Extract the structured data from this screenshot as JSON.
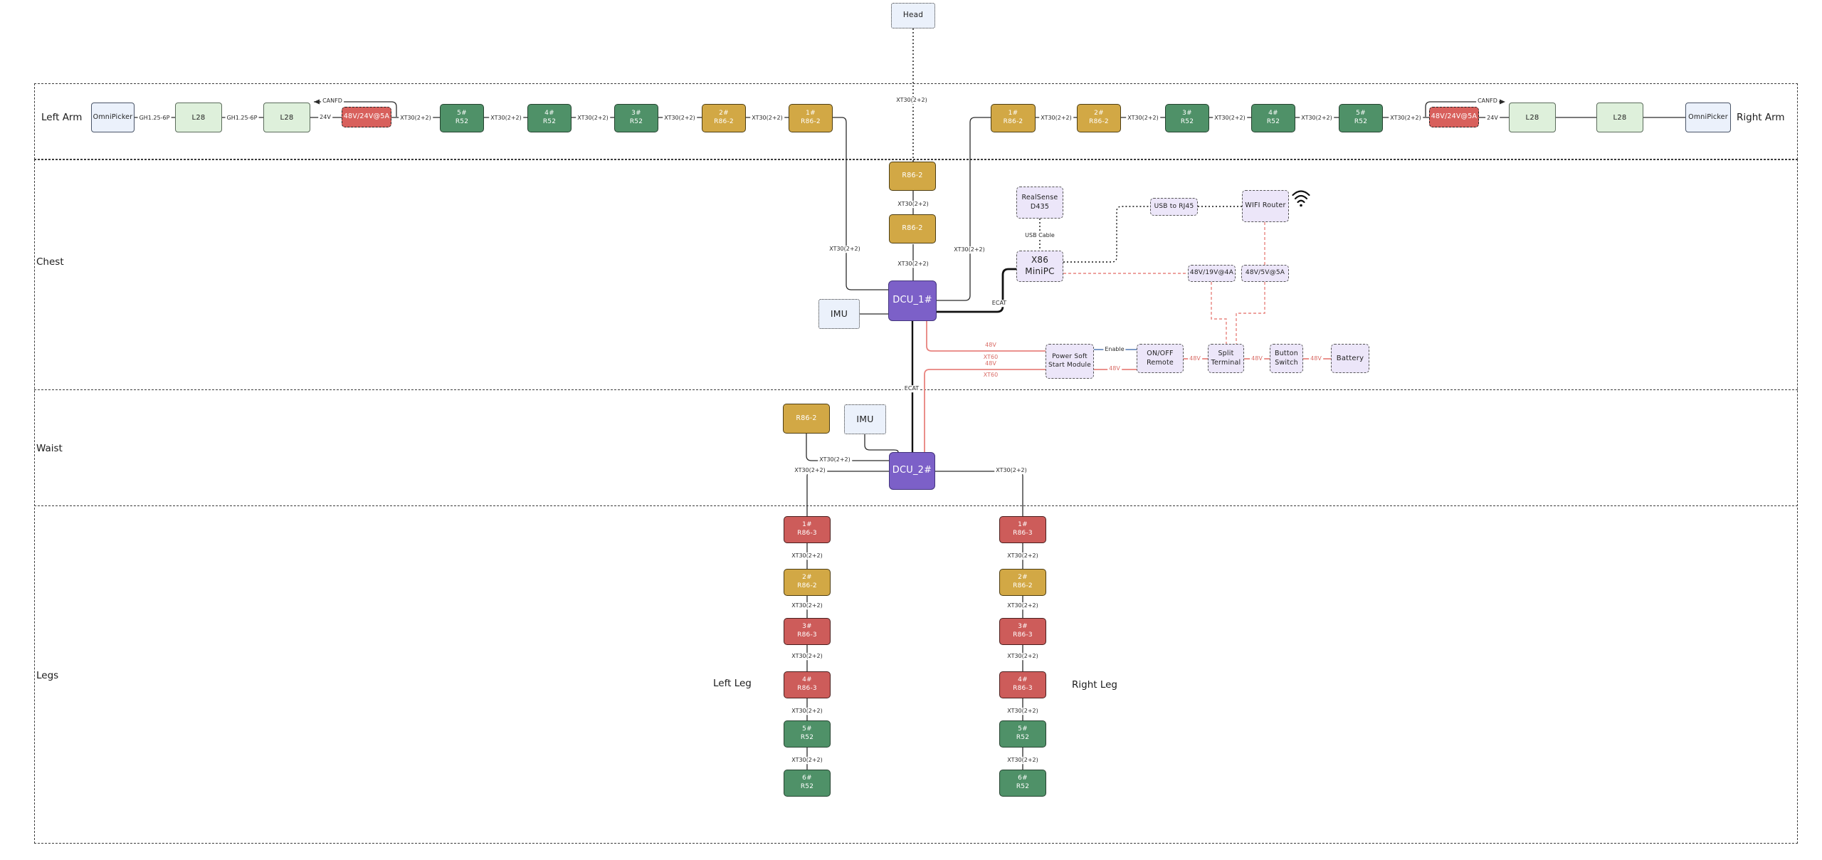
{
  "colors": {
    "motor_green": "#4F9168",
    "motor_gold": "#D2A845",
    "motor_red": "#CD5C5A",
    "dcu_purple": "#7C60C8",
    "converter_red": "#D8605C",
    "lavender_fill": "#ECE6F9",
    "softblue_fill": "#EBF1FB",
    "lightgreen_fill": "#DEF0DB",
    "wire_red": "#E8837E",
    "wire_red_text": "#D96C66",
    "wire_blue": "#6C8EBF"
  },
  "section_labels": [
    {
      "id": "left-arm",
      "text": "Left Arm"
    },
    {
      "id": "right-arm",
      "text": "Right Arm"
    },
    {
      "id": "chest",
      "text": "Chest"
    },
    {
      "id": "waist",
      "text": "Waist"
    },
    {
      "id": "legs",
      "text": "Legs"
    },
    {
      "id": "left-leg",
      "text": "Left Leg"
    },
    {
      "id": "right-leg",
      "text": "Right Leg"
    }
  ],
  "nodes": [
    {
      "id": "omnipicker-left",
      "lines": [
        "OmniPicker"
      ],
      "style": "softblue"
    },
    {
      "id": "l28-left-1",
      "lines": [
        "L28"
      ],
      "style": "lightgreen"
    },
    {
      "id": "l28-left-2",
      "lines": [
        "L28"
      ],
      "style": "lightgreen"
    },
    {
      "id": "converter-left",
      "lines": [
        "48V/24V@5A"
      ],
      "style": "reddash"
    },
    {
      "id": "motor-left-5",
      "lines": [
        "5#",
        "R52"
      ],
      "style": "green"
    },
    {
      "id": "motor-left-4",
      "lines": [
        "4#",
        "R52"
      ],
      "style": "green"
    },
    {
      "id": "motor-left-3",
      "lines": [
        "3#",
        "R52"
      ],
      "style": "green"
    },
    {
      "id": "motor-left-2",
      "lines": [
        "2#",
        "R86-2"
      ],
      "style": "gold"
    },
    {
      "id": "motor-left-1",
      "lines": [
        "1#",
        "R86-2"
      ],
      "style": "gold"
    },
    {
      "id": "motor-right-1",
      "lines": [
        "1#",
        "R86-2"
      ],
      "style": "gold"
    },
    {
      "id": "motor-right-2",
      "lines": [
        "2#",
        "R86-2"
      ],
      "style": "gold"
    },
    {
      "id": "motor-right-3",
      "lines": [
        "3#",
        "R52"
      ],
      "style": "green"
    },
    {
      "id": "motor-right-4",
      "lines": [
        "4#",
        "R52"
      ],
      "style": "green"
    },
    {
      "id": "motor-right-5",
      "lines": [
        "5#",
        "R52"
      ],
      "style": "green"
    },
    {
      "id": "converter-right",
      "lines": [
        "48V/24V@5A"
      ],
      "style": "reddash"
    },
    {
      "id": "l28-right-1",
      "lines": [
        "L28"
      ],
      "style": "lightgreen"
    },
    {
      "id": "l28-right-2",
      "lines": [
        "L28"
      ],
      "style": "lightgreen"
    },
    {
      "id": "omnipicker-right",
      "lines": [
        "OmniPicker"
      ],
      "style": "softblue"
    },
    {
      "id": "head",
      "lines": [
        "Head"
      ],
      "style": "softdot"
    },
    {
      "id": "r86-chest-1",
      "lines": [
        "R86-2"
      ],
      "style": "gold"
    },
    {
      "id": "r86-chest-2",
      "lines": [
        "R86-2"
      ],
      "style": "gold"
    },
    {
      "id": "dcu-1",
      "lines": [
        "DCU_1#"
      ],
      "style": "purple"
    },
    {
      "id": "imu-chest",
      "lines": [
        "IMU"
      ],
      "style": "softdot"
    },
    {
      "id": "realsense-d435",
      "lines": [
        "RealSense",
        "D435"
      ],
      "style": "lavender"
    },
    {
      "id": "x86-minipc",
      "lines": [
        "X86",
        "MiniPC"
      ],
      "style": "lavender"
    },
    {
      "id": "usb-to-rj45",
      "lines": [
        "USB to RJ45"
      ],
      "style": "lavender"
    },
    {
      "id": "wifi-router",
      "lines": [
        "WIFI Router"
      ],
      "style": "lavender"
    },
    {
      "id": "conv-48v-19v",
      "lines": [
        "48V/19V@4A"
      ],
      "style": "lavender"
    },
    {
      "id": "conv-48v-5v",
      "lines": [
        "48V/5V@5A"
      ],
      "style": "lavender"
    },
    {
      "id": "power-soft-start",
      "lines": [
        "Power Soft",
        "Start Module"
      ],
      "style": "lavender"
    },
    {
      "id": "onoff-remote",
      "lines": [
        "ON/OFF",
        "Remote"
      ],
      "style": "lavender"
    },
    {
      "id": "split-terminal",
      "lines": [
        "Split",
        "Terminal"
      ],
      "style": "lavender"
    },
    {
      "id": "button-switch",
      "lines": [
        "Button",
        "Switch"
      ],
      "style": "lavender"
    },
    {
      "id": "battery",
      "lines": [
        "Battery"
      ],
      "style": "lavender"
    },
    {
      "id": "r86-waist",
      "lines": [
        "R86-2"
      ],
      "style": "gold"
    },
    {
      "id": "imu-waist",
      "lines": [
        "IMU"
      ],
      "style": "softdot"
    },
    {
      "id": "dcu-2",
      "lines": [
        "DCU_2#"
      ],
      "style": "purple"
    },
    {
      "id": "left-leg-1",
      "lines": [
        "1#",
        "R86-3"
      ],
      "style": "red"
    },
    {
      "id": "left-leg-2",
      "lines": [
        "2#",
        "R86-2"
      ],
      "style": "gold"
    },
    {
      "id": "left-leg-3",
      "lines": [
        "3#",
        "R86-3"
      ],
      "style": "red"
    },
    {
      "id": "left-leg-4",
      "lines": [
        "4#",
        "R86-3"
      ],
      "style": "red"
    },
    {
      "id": "left-leg-5",
      "lines": [
        "5#",
        "R52"
      ],
      "style": "green"
    },
    {
      "id": "left-leg-6",
      "lines": [
        "6#",
        "R52"
      ],
      "style": "green"
    },
    {
      "id": "right-leg-1",
      "lines": [
        "1#",
        "R86-3"
      ],
      "style": "red"
    },
    {
      "id": "right-leg-2",
      "lines": [
        "2#",
        "R86-2"
      ],
      "style": "gold"
    },
    {
      "id": "right-leg-3",
      "lines": [
        "3#",
        "R86-3"
      ],
      "style": "red"
    },
    {
      "id": "right-leg-4",
      "lines": [
        "4#",
        "R86-3"
      ],
      "style": "red"
    },
    {
      "id": "right-leg-5",
      "lines": [
        "5#",
        "R52"
      ],
      "style": "green"
    },
    {
      "id": "right-leg-6",
      "lines": [
        "6#",
        "R52"
      ],
      "style": "green"
    }
  ],
  "wire_labels": [
    {
      "id": "la-gh1",
      "text": "GH1.25-6P",
      "color": "dark"
    },
    {
      "id": "la-gh2",
      "text": "GH1.25-6P",
      "color": "dark"
    },
    {
      "id": "la-24v",
      "text": "24V",
      "color": "dark"
    },
    {
      "id": "la-canfd",
      "text": "CANFD",
      "color": "dark"
    },
    {
      "id": "la-xt0",
      "text": "XT30(2+2)",
      "color": "dark"
    },
    {
      "id": "la-xt1",
      "text": "XT30(2+2)",
      "color": "dark"
    },
    {
      "id": "la-xt2",
      "text": "XT30(2+2)",
      "color": "dark"
    },
    {
      "id": "la-xt3",
      "text": "XT30(2+2)",
      "color": "dark"
    },
    {
      "id": "la-xt4",
      "text": "XT30(2+2)",
      "color": "dark"
    },
    {
      "id": "ra-xt4",
      "text": "XT30(2+2)",
      "color": "dark"
    },
    {
      "id": "ra-xt3",
      "text": "XT30(2+2)",
      "color": "dark"
    },
    {
      "id": "ra-xt2",
      "text": "XT30(2+2)",
      "color": "dark"
    },
    {
      "id": "ra-xt1",
      "text": "XT30(2+2)",
      "color": "dark"
    },
    {
      "id": "ra-xt0",
      "text": "XT30(2+2)",
      "color": "dark"
    },
    {
      "id": "ra-canfd",
      "text": "CANFD",
      "color": "dark"
    },
    {
      "id": "ra-24v",
      "text": "24V",
      "color": "dark"
    },
    {
      "id": "head-xt",
      "text": "XT30(2+2)",
      "color": "dark"
    },
    {
      "id": "ch-xt-c1",
      "text": "XT30(2+2)",
      "color": "dark"
    },
    {
      "id": "ch-xt-c2",
      "text": "XT30(2+2)",
      "color": "dark"
    },
    {
      "id": "ch-xt-l",
      "text": "XT30(2+2)",
      "color": "dark"
    },
    {
      "id": "ch-xt-r",
      "text": "XT30(2+2)",
      "color": "dark"
    },
    {
      "id": "usb-cable",
      "text": "USB Cable",
      "color": "dark"
    },
    {
      "id": "ecat-1",
      "text": "ECAT",
      "color": "dark"
    },
    {
      "id": "ecat-2",
      "text": "ECAT",
      "color": "dark"
    },
    {
      "id": "enable",
      "text": "Enable",
      "color": "dark"
    },
    {
      "id": "psm-48v",
      "text": "48V",
      "color": "red"
    },
    {
      "id": "s48-a",
      "text": "48V",
      "color": "red"
    },
    {
      "id": "s48-b",
      "text": "48V",
      "color": "red"
    },
    {
      "id": "s48-c",
      "text": "48V",
      "color": "red"
    },
    {
      "id": "feed-48v-a",
      "text": "48V",
      "color": "red"
    },
    {
      "id": "feed-xt60-a",
      "text": "XT60",
      "color": "red"
    },
    {
      "id": "feed-48v-b",
      "text": "48V",
      "color": "red"
    },
    {
      "id": "feed-xt60-b",
      "text": "XT60",
      "color": "red"
    },
    {
      "id": "wa-xt-t",
      "text": "XT30(2+2)",
      "color": "dark"
    },
    {
      "id": "wa-xt-l",
      "text": "XT30(2+2)",
      "color": "dark"
    },
    {
      "id": "wa-xt-r",
      "text": "XT30(2+2)",
      "color": "dark"
    },
    {
      "id": "llx-1",
      "text": "XT30(2+2)",
      "color": "dark"
    },
    {
      "id": "llx-2",
      "text": "XT30(2+2)",
      "color": "dark"
    },
    {
      "id": "llx-3",
      "text": "XT30(2+2)",
      "color": "dark"
    },
    {
      "id": "llx-4",
      "text": "XT30(2+2)",
      "color": "dark"
    },
    {
      "id": "llx-5",
      "text": "XT30(2+2)",
      "color": "dark"
    },
    {
      "id": "rlx-1",
      "text": "XT30(2+2)",
      "color": "dark"
    },
    {
      "id": "rlx-2",
      "text": "XT30(2+2)",
      "color": "dark"
    },
    {
      "id": "rlx-3",
      "text": "XT30(2+2)",
      "color": "dark"
    },
    {
      "id": "rlx-4",
      "text": "XT30(2+2)",
      "color": "dark"
    },
    {
      "id": "rlx-5",
      "text": "XT30(2+2)",
      "color": "dark"
    }
  ]
}
